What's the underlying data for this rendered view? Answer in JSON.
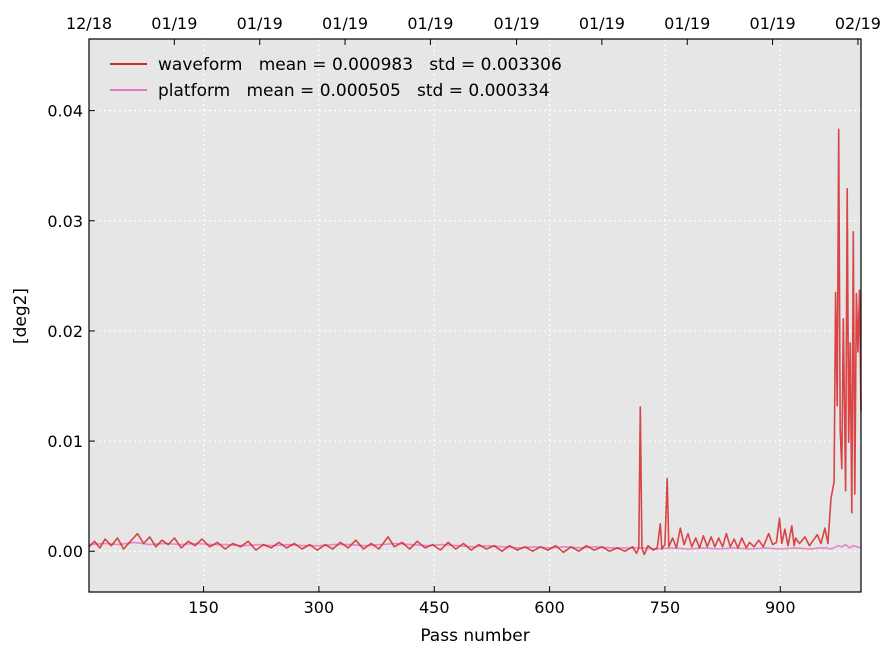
{
  "chart_data": {
    "type": "line",
    "title": "",
    "xlabel": "Pass number",
    "ylabel": "[deg2]",
    "xlim": [
      1,
      1005
    ],
    "ylim": [
      -0.0037,
      0.0465
    ],
    "x_ticks": [
      150,
      300,
      450,
      600,
      750,
      900
    ],
    "y_ticks": [
      0.0,
      0.01,
      0.02,
      0.03,
      0.04
    ],
    "y_tick_labels": [
      "0.00",
      "0.01",
      "0.02",
      "0.03",
      "0.04"
    ],
    "top_axis_ticks": [
      {
        "x": 1,
        "label": "12/18"
      },
      {
        "x": 112,
        "label": "01/19"
      },
      {
        "x": 223,
        "label": "01/19"
      },
      {
        "x": 334,
        "label": "01/19"
      },
      {
        "x": 445,
        "label": "01/19"
      },
      {
        "x": 557,
        "label": "01/19"
      },
      {
        "x": 668,
        "label": "01/19"
      },
      {
        "x": 779,
        "label": "01/19"
      },
      {
        "x": 890,
        "label": "01/19"
      },
      {
        "x": 1001,
        "label": "02/19"
      }
    ],
    "grid": true,
    "legend_position": "top-left",
    "background": "#e6e6e6",
    "series": [
      {
        "name": "waveform   mean = 0.000983   std = 0.003306",
        "color": "#d62728",
        "points": [
          [
            1,
            0.0004
          ],
          [
            8,
            0.0009
          ],
          [
            15,
            0.0003
          ],
          [
            22,
            0.0011
          ],
          [
            30,
            0.0005
          ],
          [
            38,
            0.0012
          ],
          [
            46,
            0.0002
          ],
          [
            55,
            0.0009
          ],
          [
            64,
            0.0016
          ],
          [
            72,
            0.0007
          ],
          [
            80,
            0.0013
          ],
          [
            88,
            0.0004
          ],
          [
            96,
            0.001
          ],
          [
            104,
            0.0006
          ],
          [
            112,
            0.0012
          ],
          [
            121,
            0.0003
          ],
          [
            130,
            0.0009
          ],
          [
            139,
            0.0005
          ],
          [
            148,
            0.0011
          ],
          [
            158,
            0.0004
          ],
          [
            168,
            0.0008
          ],
          [
            178,
            0.0002
          ],
          [
            188,
            0.0007
          ],
          [
            198,
            0.0004
          ],
          [
            208,
            0.0009
          ],
          [
            218,
            0.0001
          ],
          [
            228,
            0.0006
          ],
          [
            238,
            0.0003
          ],
          [
            248,
            0.0008
          ],
          [
            258,
            0.0003
          ],
          [
            268,
            0.0007
          ],
          [
            278,
            0.0002
          ],
          [
            288,
            0.0006
          ],
          [
            298,
            0.0001
          ],
          [
            308,
            0.0006
          ],
          [
            318,
            0.0002
          ],
          [
            328,
            0.0008
          ],
          [
            338,
            0.0003
          ],
          [
            348,
            0.001
          ],
          [
            358,
            0.0002
          ],
          [
            368,
            0.0007
          ],
          [
            378,
            0.0002
          ],
          [
            390,
            0.0013
          ],
          [
            398,
            0.0004
          ],
          [
            408,
            0.0008
          ],
          [
            418,
            0.0002
          ],
          [
            428,
            0.0009
          ],
          [
            438,
            0.0003
          ],
          [
            448,
            0.0006
          ],
          [
            458,
            0.0001
          ],
          [
            468,
            0.0008
          ],
          [
            478,
            0.0002
          ],
          [
            488,
            0.0007
          ],
          [
            498,
            0.0001
          ],
          [
            508,
            0.0006
          ],
          [
            518,
            0.0002
          ],
          [
            528,
            0.0005
          ],
          [
            538,
            0.0
          ],
          [
            548,
            0.0005
          ],
          [
            558,
            0.0001
          ],
          [
            568,
            0.0004
          ],
          [
            578,
            0.0
          ],
          [
            588,
            0.0004
          ],
          [
            598,
            0.0001
          ],
          [
            608,
            0.0005
          ],
          [
            618,
            -0.0001
          ],
          [
            628,
            0.0004
          ],
          [
            638,
            0.0
          ],
          [
            648,
            0.0005
          ],
          [
            658,
            0.0001
          ],
          [
            668,
            0.0004
          ],
          [
            678,
            0.0
          ],
          [
            688,
            0.0003
          ],
          [
            698,
            0.0
          ],
          [
            708,
            0.0004
          ],
          [
            713,
            -0.0002
          ],
          [
            716,
            0.0003
          ],
          [
            718,
            0.0131
          ],
          [
            720,
            0.0003
          ],
          [
            723,
            -0.0003
          ],
          [
            728,
            0.0005
          ],
          [
            735,
            0.0001
          ],
          [
            740,
            0.0003
          ],
          [
            744,
            0.0025
          ],
          [
            746,
            0.0002
          ],
          [
            750,
            0.0006
          ],
          [
            753,
            0.0066
          ],
          [
            755,
            0.0004
          ],
          [
            760,
            0.0012
          ],
          [
            765,
            0.0003
          ],
          [
            770,
            0.0021
          ],
          [
            775,
            0.0006
          ],
          [
            780,
            0.0016
          ],
          [
            785,
            0.0004
          ],
          [
            790,
            0.0012
          ],
          [
            795,
            0.0003
          ],
          [
            800,
            0.0014
          ],
          [
            805,
            0.0004
          ],
          [
            810,
            0.0013
          ],
          [
            815,
            0.0004
          ],
          [
            820,
            0.0012
          ],
          [
            825,
            0.0004
          ],
          [
            830,
            0.0016
          ],
          [
            835,
            0.0004
          ],
          [
            840,
            0.0011
          ],
          [
            845,
            0.0003
          ],
          [
            850,
            0.0012
          ],
          [
            856,
            0.0003
          ],
          [
            860,
            0.0008
          ],
          [
            866,
            0.0004
          ],
          [
            872,
            0.001
          ],
          [
            878,
            0.0004
          ],
          [
            885,
            0.0016
          ],
          [
            890,
            0.0006
          ],
          [
            895,
            0.0008
          ],
          [
            899,
            0.003
          ],
          [
            902,
            0.0007
          ],
          [
            906,
            0.002
          ],
          [
            910,
            0.0005
          ],
          [
            915,
            0.0023
          ],
          [
            918,
            0.0005
          ],
          [
            920,
            0.0012
          ],
          [
            925,
            0.0007
          ],
          [
            932,
            0.0013
          ],
          [
            938,
            0.0005
          ],
          [
            943,
            0.001
          ],
          [
            948,
            0.0015
          ],
          [
            953,
            0.0007
          ],
          [
            958,
            0.0021
          ],
          [
            962,
            0.0007
          ],
          [
            966,
            0.0048
          ],
          [
            970,
            0.0063
          ],
          [
            972,
            0.0235
          ],
          [
            974,
            0.0132
          ],
          [
            976,
            0.0383
          ],
          [
            978,
            0.011
          ],
          [
            980,
            0.0075
          ],
          [
            982,
            0.0211
          ],
          [
            985,
            0.0055
          ],
          [
            987,
            0.0329
          ],
          [
            989,
            0.0099
          ],
          [
            991,
            0.0189
          ],
          [
            993,
            0.0035
          ],
          [
            995,
            0.029
          ],
          [
            997,
            0.0052
          ],
          [
            999,
            0.0234
          ],
          [
            1001,
            0.0181
          ],
          [
            1003,
            0.0237
          ],
          [
            1005,
            0.0127
          ]
        ]
      },
      {
        "name": "platform   mean = 0.000505   std = 0.000334",
        "color": "#e377c2",
        "points": [
          [
            1,
            0.0006
          ],
          [
            20,
            0.0007
          ],
          [
            40,
            0.0006
          ],
          [
            60,
            0.0008
          ],
          [
            80,
            0.0006
          ],
          [
            100,
            0.0007
          ],
          [
            120,
            0.0006
          ],
          [
            140,
            0.0007
          ],
          [
            160,
            0.0006
          ],
          [
            180,
            0.0006
          ],
          [
            200,
            0.0005
          ],
          [
            220,
            0.0006
          ],
          [
            240,
            0.0005
          ],
          [
            260,
            0.0006
          ],
          [
            280,
            0.0005
          ],
          [
            300,
            0.0005
          ],
          [
            320,
            0.0006
          ],
          [
            340,
            0.0006
          ],
          [
            360,
            0.0005
          ],
          [
            380,
            0.0006
          ],
          [
            400,
            0.0007
          ],
          [
            420,
            0.0006
          ],
          [
            440,
            0.0005
          ],
          [
            460,
            0.0006
          ],
          [
            480,
            0.0005
          ],
          [
            500,
            0.0004
          ],
          [
            520,
            0.0005
          ],
          [
            540,
            0.0004
          ],
          [
            560,
            0.0003
          ],
          [
            580,
            0.0004
          ],
          [
            600,
            0.0003
          ],
          [
            620,
            0.0004
          ],
          [
            640,
            0.0003
          ],
          [
            660,
            0.0004
          ],
          [
            680,
            0.0003
          ],
          [
            700,
            0.0003
          ],
          [
            720,
            0.0003
          ],
          [
            740,
            0.0002
          ],
          [
            760,
            0.0003
          ],
          [
            780,
            0.0002
          ],
          [
            800,
            0.0003
          ],
          [
            820,
            0.0002
          ],
          [
            840,
            0.0003
          ],
          [
            860,
            0.0002
          ],
          [
            880,
            0.0003
          ],
          [
            900,
            0.0002
          ],
          [
            920,
            0.0003
          ],
          [
            940,
            0.0002
          ],
          [
            950,
            0.0003
          ],
          [
            960,
            0.0003
          ],
          [
            965,
            0.0002
          ],
          [
            970,
            0.0003
          ],
          [
            975,
            0.0005
          ],
          [
            980,
            0.0004
          ],
          [
            985,
            0.0006
          ],
          [
            990,
            0.0003
          ],
          [
            995,
            0.0005
          ],
          [
            1000,
            0.0004
          ],
          [
            1005,
            0.0003
          ]
        ]
      }
    ]
  }
}
